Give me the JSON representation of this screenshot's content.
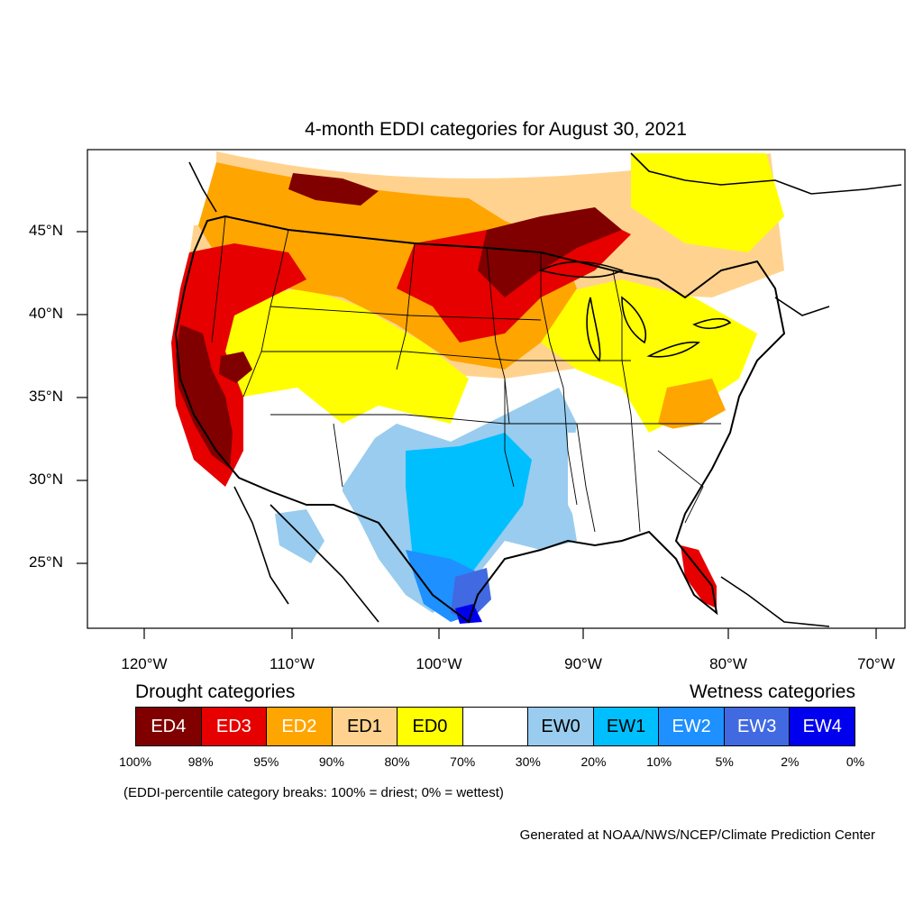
{
  "title": "4-month EDDI categories for August 30, 2021",
  "map": {
    "projection": "lambert-conformal",
    "region": "CONUS",
    "latitude_ticks": [
      "45°N",
      "40°N",
      "35°N",
      "30°N",
      "25°N"
    ],
    "longitude_ticks": [
      "120°W",
      "110°W",
      "100°W",
      "90°W",
      "80°W",
      "70°W"
    ]
  },
  "legend": {
    "drought_heading": "Drought categories",
    "wetness_heading": "Wetness categories",
    "categories": [
      {
        "label": "ED4",
        "color": "#800000",
        "text_color": "#ffffff"
      },
      {
        "label": "ED3",
        "color": "#e60000",
        "text_color": "#ffffff"
      },
      {
        "label": "ED2",
        "color": "#ffa500",
        "text_color": "#ffffff"
      },
      {
        "label": "ED1",
        "color": "#ffd38f",
        "text_color": "#000000"
      },
      {
        "label": "ED0",
        "color": "#ffff00",
        "text_color": "#000000"
      },
      {
        "label": "",
        "color": "#ffffff",
        "text_color": "#000000"
      },
      {
        "label": "EW0",
        "color": "#99ccee",
        "text_color": "#000000"
      },
      {
        "label": "EW1",
        "color": "#00bfff",
        "text_color": "#000000"
      },
      {
        "label": "EW2",
        "color": "#1e90ff",
        "text_color": "#ffffff"
      },
      {
        "label": "EW3",
        "color": "#4169e1",
        "text_color": "#ffffff"
      },
      {
        "label": "EW4",
        "color": "#0000ee",
        "text_color": "#ffffff"
      }
    ],
    "breaks": [
      "100%",
      "98%",
      "95%",
      "90%",
      "80%",
      "70%",
      "30%",
      "20%",
      "10%",
      "5%",
      "2%",
      "0%"
    ]
  },
  "note": "(EDDI-percentile category breaks: 100% = driest; 0% = wettest)",
  "credit": "Generated at NOAA/NWS/NCEP/Climate Prediction Center"
}
